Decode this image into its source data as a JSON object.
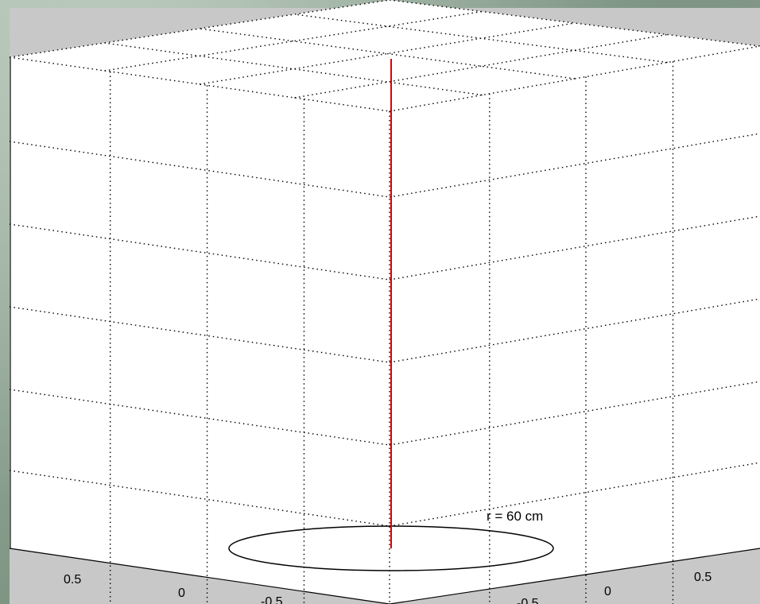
{
  "chart_data": {
    "type": "3d-line",
    "title": "",
    "view": "3d-perspective",
    "grid": true,
    "grid_style": "dotted",
    "x_ticks": [
      "0.5",
      "0",
      "-0.5"
    ],
    "y_ticks": [
      "0.5",
      "0",
      "-0.5"
    ],
    "z_ticks": [],
    "series": [
      {
        "type": "vertical-line",
        "x": 0,
        "y": 0,
        "z": [
          0,
          1
        ],
        "color": "#e00000"
      },
      {
        "type": "circle",
        "center_x": 0,
        "center_y": 0,
        "z": 0,
        "color": "#000000"
      }
    ],
    "annotations": [
      {
        "text": "r = 60 cm"
      }
    ]
  },
  "colors": {
    "axes_background": "#ffffff",
    "figure_gray": "#c8c8c8",
    "grid": "#000000",
    "line": "#e00000"
  }
}
